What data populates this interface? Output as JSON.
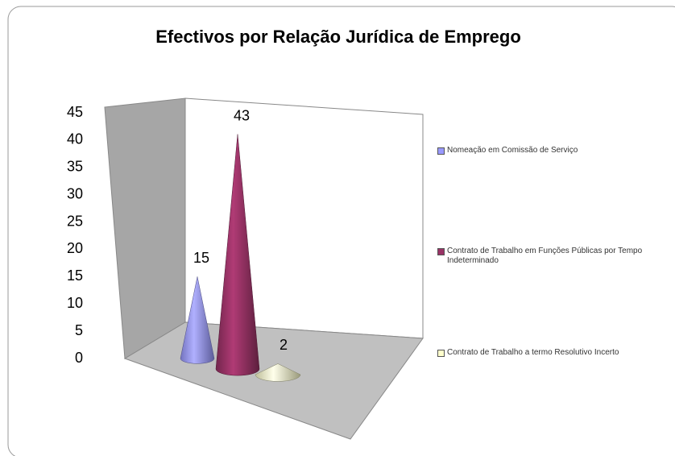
{
  "chart_data": {
    "type": "cone",
    "title": "Efectivos por Relação Jurídica de Emprego",
    "series": [
      {
        "name": "Nomeação em Comissão de Serviço",
        "color": "#9999ff",
        "values": [
          15
        ]
      },
      {
        "name": "Contrato de Trabalho em Funções Públicas por Tempo Indeterminado",
        "color": "#993366",
        "values": [
          43
        ]
      },
      {
        "name": "Contrato de Trabalho a termo Resolutivo Incerto",
        "color": "#ffffcc",
        "values": [
          2
        ]
      }
    ],
    "ylim": [
      0,
      45
    ],
    "yticks": [
      0,
      5,
      10,
      15,
      20,
      25,
      30,
      35,
      40,
      45
    ],
    "legend": "right"
  }
}
